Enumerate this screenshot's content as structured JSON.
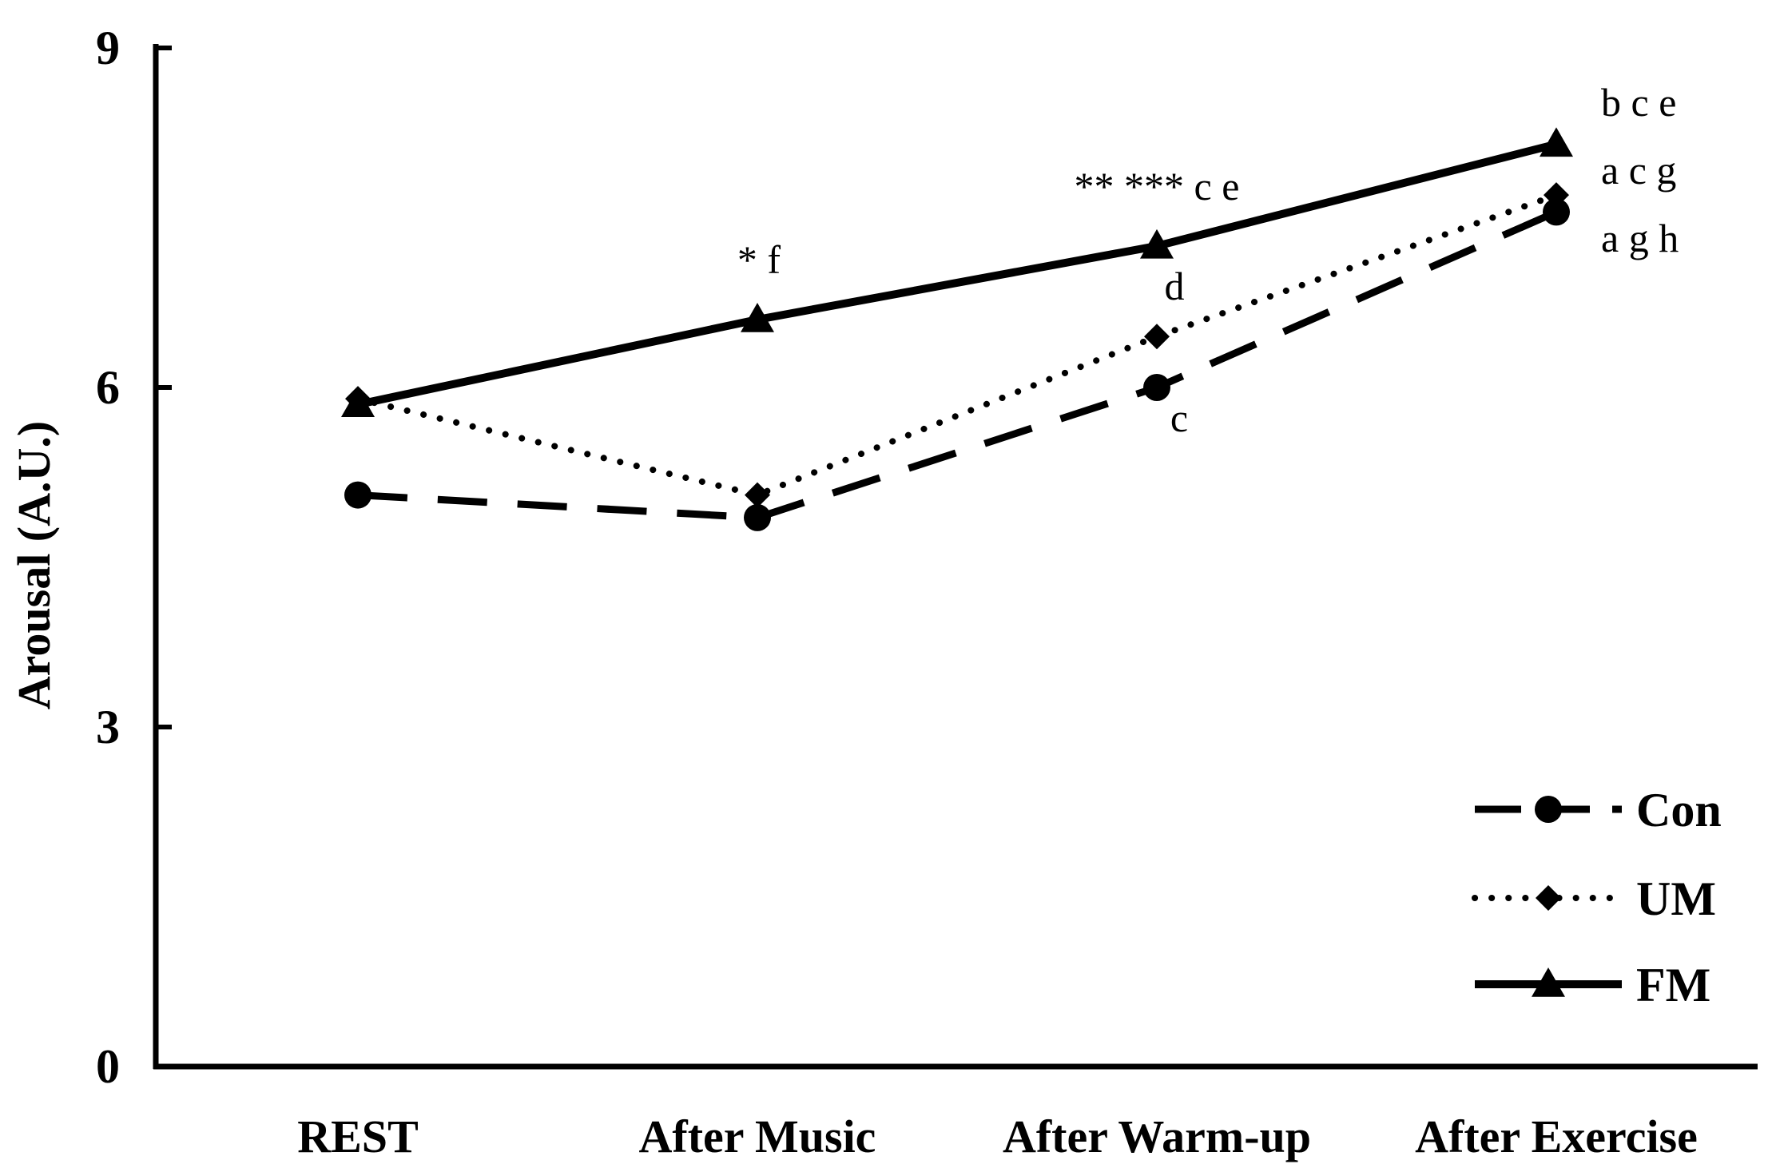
{
  "chart_data": {
    "type": "line",
    "title": "",
    "xlabel": "",
    "ylabel": "Arousal (A.U.)",
    "ylim": [
      0,
      9
    ],
    "yticks": [
      "0",
      "3",
      "6",
      "9"
    ],
    "categories": [
      "REST",
      "After Music",
      "After Warm-up",
      "After Exercise"
    ],
    "grid": false,
    "legend_position": "bottom-right",
    "series": [
      {
        "name": "Con",
        "values": [
          5.05,
          4.85,
          6.0,
          7.55
        ],
        "line_style": "dashed",
        "marker": "circle"
      },
      {
        "name": "UM",
        "values": [
          5.9,
          5.05,
          6.45,
          7.7
        ],
        "line_style": "dotted",
        "marker": "diamond"
      },
      {
        "name": "FM",
        "values": [
          5.85,
          6.6,
          7.25,
          8.15
        ],
        "line_style": "solid",
        "marker": "triangle"
      }
    ],
    "annotations": [
      {
        "text": "* f",
        "category": "After Music"
      },
      {
        "text": "** *** c e",
        "category": "After Warm-up"
      },
      {
        "text": "d",
        "category": "After Warm-up"
      },
      {
        "text": "c",
        "category": "After Warm-up"
      },
      {
        "text": "b c e",
        "category": "After Exercise"
      },
      {
        "text": "a c g",
        "category": "After Exercise"
      },
      {
        "text": "a g h",
        "category": "After Exercise"
      }
    ],
    "colors": {
      "lines": "#000000",
      "background": "#ffffff"
    }
  }
}
